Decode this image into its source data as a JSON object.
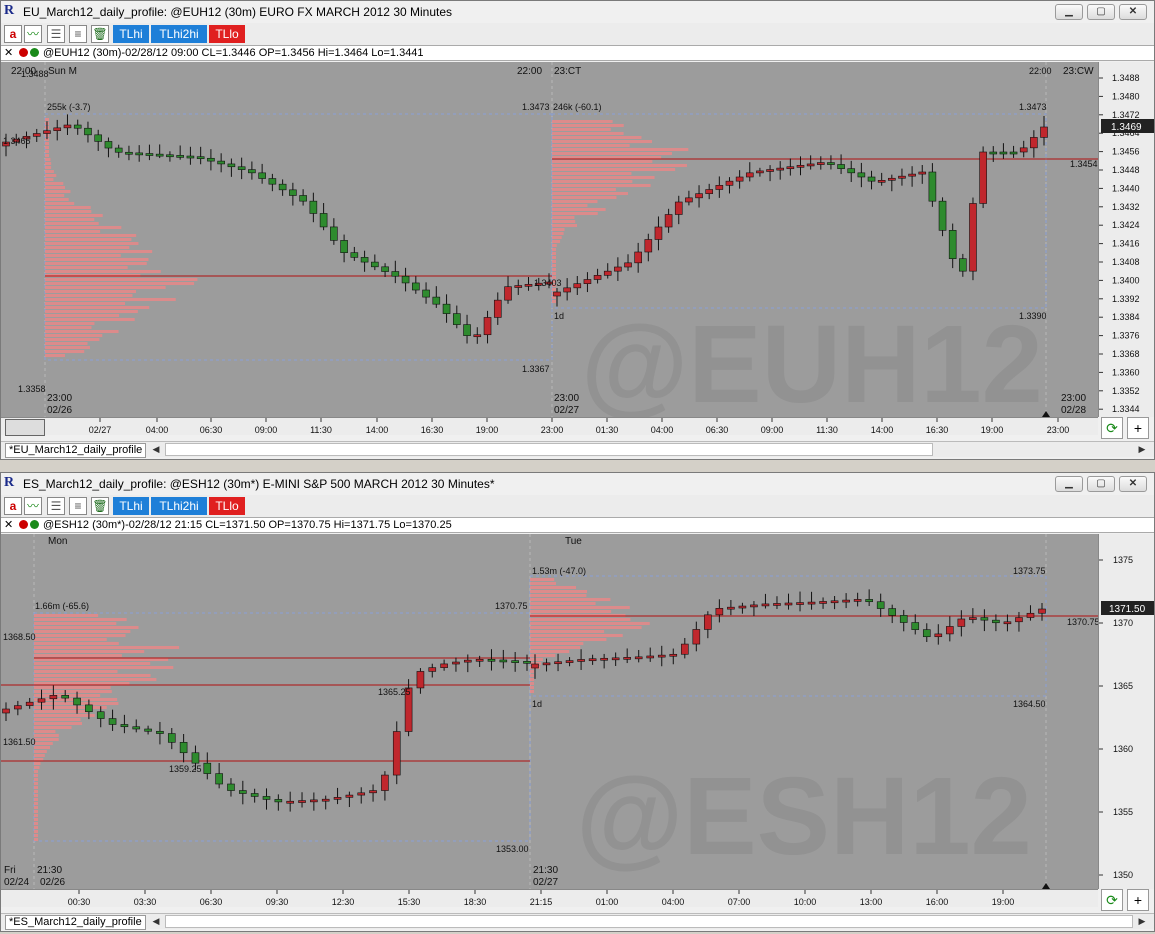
{
  "window_top": {
    "title": "EU_March12_daily_profile: @EUH12 (30m) EURO FX MARCH 2012 30 Minutes",
    "buttons": {
      "a": "a",
      "tlhi": "TLhi",
      "tlhi2hi": "TLhi2hi",
      "tllo": "TLlo"
    },
    "info": "@EUH12 (30m)-02/28/12 09:00 CL=1.3446 OP=1.3456 Hi=1.3464 Lo=1.3441",
    "tab": "*EU_March12_daily_profile",
    "watermark": "@EUH12",
    "price_ticks": [
      "1.3488",
      "1.3480",
      "1.3472",
      "1.3464",
      "1.3456",
      "1.3448",
      "1.3440",
      "1.3432",
      "1.3424",
      "1.3416",
      "1.3408",
      "1.3400",
      "1.3392",
      "1.3384",
      "1.3376",
      "1.3368",
      "1.3360",
      "1.3352",
      "1.3344"
    ],
    "last_price": "1.3469",
    "time_ticks": [
      "02/27",
      "04:00",
      "06:30",
      "09:00",
      "11:30",
      "14:00",
      "16:30",
      "19:00",
      "23:00",
      "01:30",
      "04:00",
      "06:30",
      "09:00",
      "11:30",
      "14:00",
      "16:30",
      "19:00",
      "23:00"
    ],
    "labels": {
      "top_left": "22:00",
      "top_left2": "1.3488",
      "sun_m": "Sun M",
      "mid_top": "22:00",
      "ct": "23:CT",
      "right_top": "22:00",
      "cw": "23:CW",
      "p1_vol": "255k (-3.7)",
      "p1_high": "1.3473",
      "p2_vol": "246k (-60.1)",
      "p2_high": "1.3473",
      "p2_va": "1.3454",
      "p1_low": "1.3367",
      "p0_low": "1.3358",
      "p2_low": "1.3390",
      "p2_1d": "1d",
      "poc_label": "1.3403",
      "left_1465": "1.3465",
      "d1_time": "23:00",
      "d1_date": "02/26",
      "d2_time": "23:00",
      "d2_date": "02/27",
      "d3_time": "23:00",
      "d3_date": "02/28"
    }
  },
  "window_bottom": {
    "title": "ES_March12_daily_profile: @ESH12 (30m*) E-MINI S&P 500 MARCH 2012 30 Minutes*",
    "buttons": {
      "a": "a",
      "tlhi": "TLhi",
      "tlhi2hi": "TLhi2hi",
      "tllo": "TLlo"
    },
    "info": "@ESH12 (30m*)-02/28/12 21:15 CL=1371.50 OP=1370.75 Hi=1371.75 Lo=1370.25",
    "tab": "*ES_March12_daily_profile",
    "watermark": "@ESH12",
    "price_ticks": [
      "1375",
      "1370",
      "1365",
      "1360",
      "1355",
      "1350"
    ],
    "last_price": "1371.50",
    "time_ticks": [
      "00:30",
      "03:30",
      "06:30",
      "09:30",
      "12:30",
      "15:30",
      "18:30",
      "21:15",
      "01:00",
      "04:00",
      "07:00",
      "10:00",
      "13:00",
      "16:00",
      "19:00"
    ],
    "labels": {
      "mon": "Mon",
      "tue": "Tue",
      "p1_vol": "1.66m (-65.6)",
      "p1_high": "1370.75",
      "p2_vol": "1.53m (-47.0)",
      "p2_high": "1373.75",
      "p0_a": "1368.50",
      "p0_b": "1361.50",
      "p1_mid": "1365.25",
      "p1_low2": "1359.25",
      "p1_low": "1353.00",
      "p2_low": "1364.50",
      "p2_right": "1370.75",
      "p2_1d": "1d",
      "fri": "Fri",
      "d0_time": "21:30",
      "d0_date": "02/24",
      "d1_date": "02/26",
      "d2_time": "21:30",
      "d2_date": "02/27"
    }
  },
  "colors": {
    "up": "#2e8b2e",
    "down": "#c0272d",
    "profile": "#e88888",
    "tlhi": "#1e7fd8",
    "tllo": "#e02020"
  }
}
